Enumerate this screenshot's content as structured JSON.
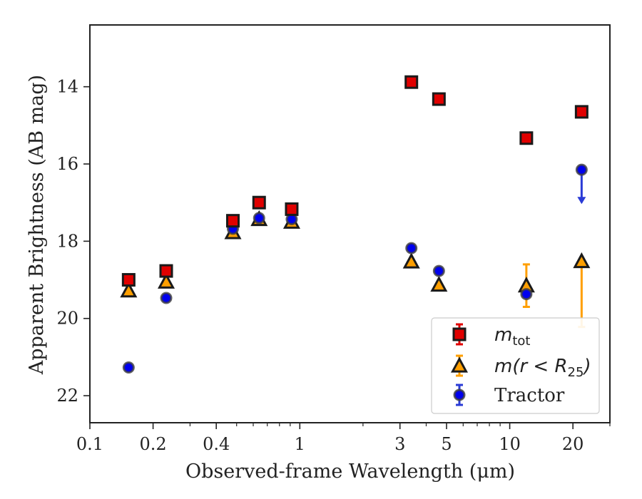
{
  "chart_data": {
    "type": "scatter",
    "xlabel": "Observed-frame Wavelength (μm)",
    "ylabel": "Apparent Brightness (AB mag)",
    "x_scale": "log",
    "xlim": [
      0.1,
      30
    ],
    "ylim": [
      22.7,
      12.4
    ],
    "y_inverted": true,
    "x_ticks": [
      {
        "value": 0.1,
        "label": "0.1"
      },
      {
        "value": 0.2,
        "label": "0.2"
      },
      {
        "value": 0.4,
        "label": "0.4"
      },
      {
        "value": 1,
        "label": "1"
      },
      {
        "value": 3,
        "label": "3"
      },
      {
        "value": 5,
        "label": "5"
      },
      {
        "value": 10,
        "label": "10"
      },
      {
        "value": 20,
        "label": "20"
      }
    ],
    "y_ticks": [
      {
        "value": 14,
        "label": "14"
      },
      {
        "value": 16,
        "label": "16"
      },
      {
        "value": 18,
        "label": "18"
      },
      {
        "value": 20,
        "label": "20"
      },
      {
        "value": 22,
        "label": "22"
      }
    ],
    "grid": false,
    "legend_position": "lower-right",
    "series": [
      {
        "name": "m_tot",
        "legend_main": "m",
        "legend_sub": "tot",
        "marker": "square",
        "color": "#e00000",
        "edge_color": "#1a1a1a",
        "points": [
          {
            "x": 0.153,
            "y": 19.0
          },
          {
            "x": 0.231,
            "y": 18.77
          },
          {
            "x": 0.48,
            "y": 17.47
          },
          {
            "x": 0.64,
            "y": 17.0
          },
          {
            "x": 0.915,
            "y": 17.17
          },
          {
            "x": 3.4,
            "y": 13.88
          },
          {
            "x": 4.6,
            "y": 14.32
          },
          {
            "x": 12.0,
            "y": 15.33
          },
          {
            "x": 22.0,
            "y": 14.65
          }
        ]
      },
      {
        "name": "m(r < R25)",
        "legend_main": "m(r < R",
        "legend_sub": "25",
        "legend_tail": ")",
        "marker": "triangle",
        "color": "#ff9f00",
        "edge_color": "#1a1a1a",
        "points": [
          {
            "x": 0.153,
            "y": 19.28
          },
          {
            "x": 0.231,
            "y": 19.05
          },
          {
            "x": 0.48,
            "y": 17.77
          },
          {
            "x": 0.64,
            "y": 17.43
          },
          {
            "x": 0.915,
            "y": 17.5
          },
          {
            "x": 3.4,
            "y": 18.53
          },
          {
            "x": 4.6,
            "y": 19.13
          },
          {
            "x": 12.0,
            "y": 19.15,
            "err_low": 0.55,
            "err_high": 0.55
          },
          {
            "x": 22.0,
            "y": 18.52,
            "err_low": 0.0,
            "err_high": 1.7
          }
        ]
      },
      {
        "name": "Tractor",
        "legend_main": "Tractor",
        "marker": "circle",
        "color": "#0000ee",
        "edge_color": "#404040",
        "points": [
          {
            "x": 0.153,
            "y": 21.27
          },
          {
            "x": 0.231,
            "y": 19.47
          },
          {
            "x": 0.48,
            "y": 17.68
          },
          {
            "x": 0.64,
            "y": 17.4
          },
          {
            "x": 0.915,
            "y": 17.43
          },
          {
            "x": 3.4,
            "y": 18.18
          },
          {
            "x": 4.6,
            "y": 18.77
          },
          {
            "x": 12.0,
            "y": 19.37
          },
          {
            "x": 22.0,
            "y": 16.15,
            "upper_limit_to": 17.0
          }
        ]
      }
    ]
  }
}
